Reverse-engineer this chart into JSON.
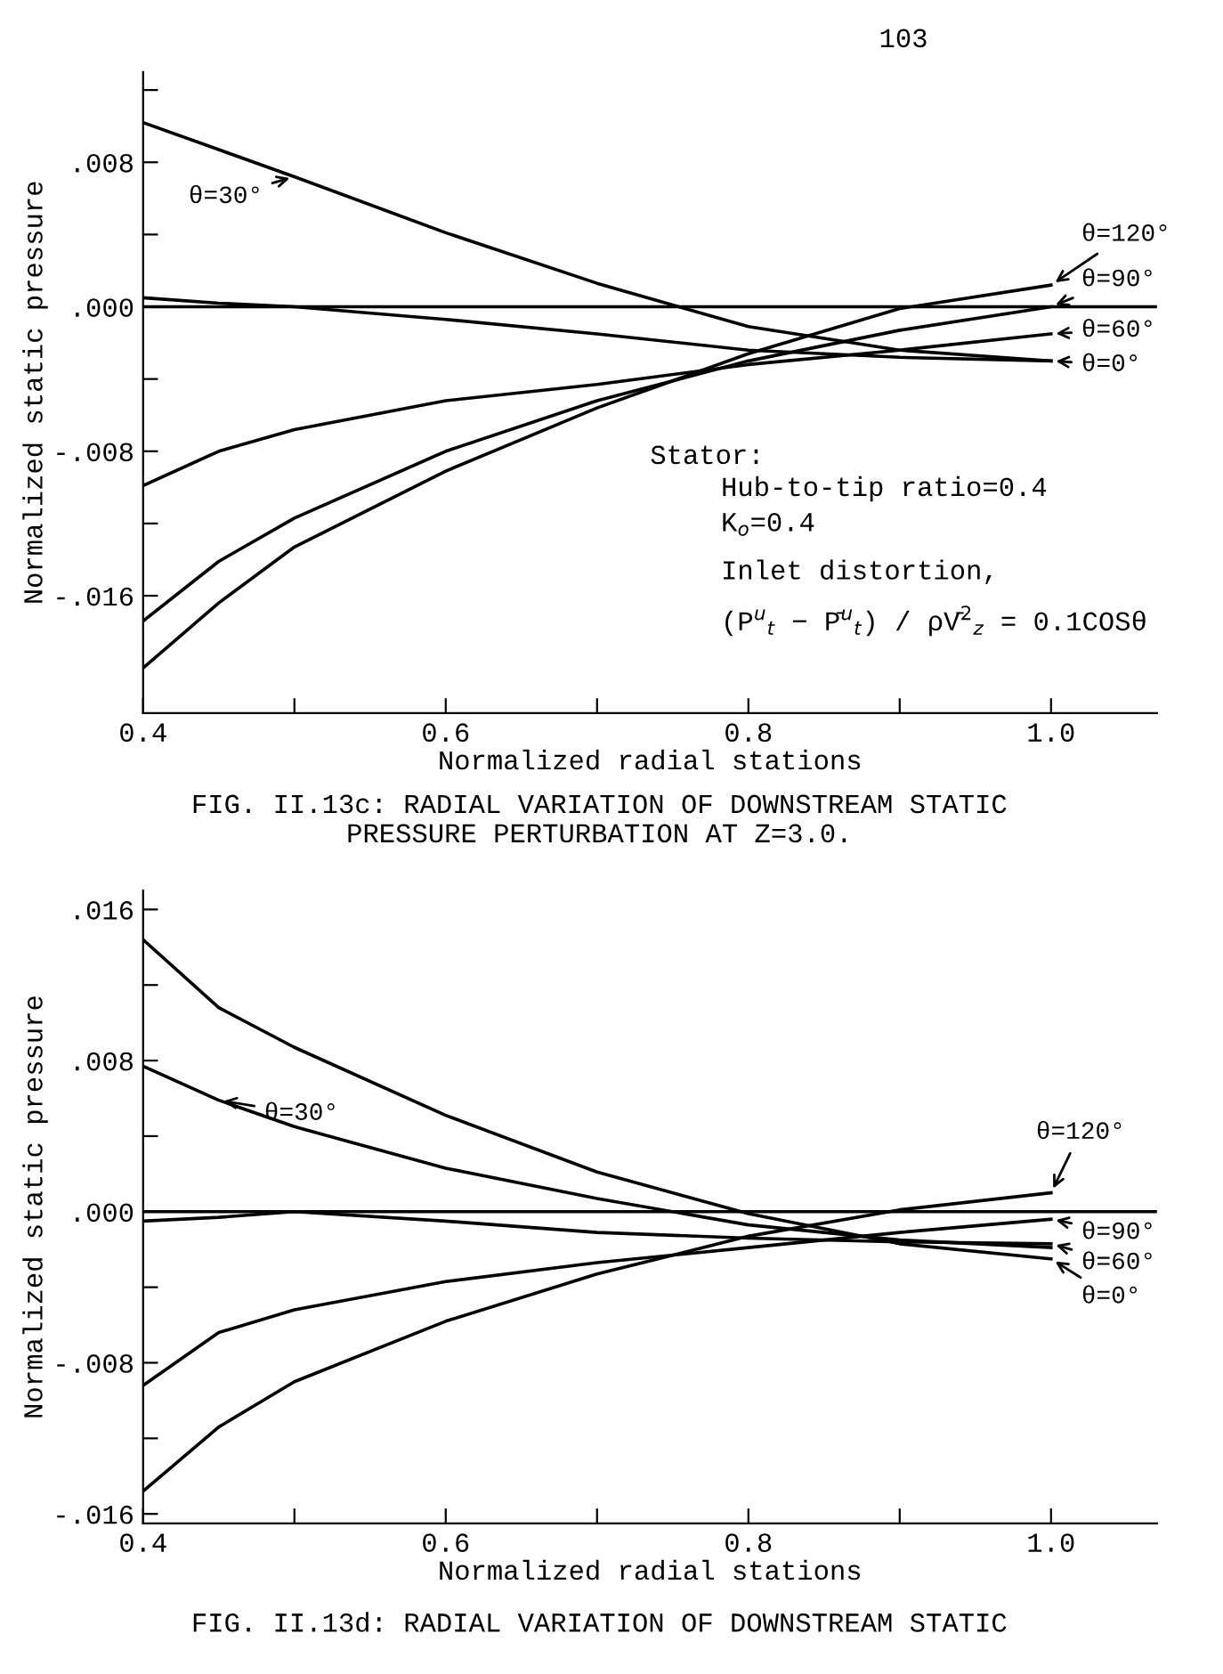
{
  "chart_data": [
    {
      "type": "line",
      "xlabel": "Normalized radial stations",
      "ylabel": "Normalized static pressure",
      "annotations": [
        "103",
        "Stator:",
        "Hub-to-tip ratio=0.4",
        "K$_{o}$=0.4",
        "Inlet distortion,",
        "(P$^{u}$$_{t}$ − P̄$^{u}$$_{t}$) / ρV̄$^{2}$$_{z}$ = 0.1COSθ",
        "FIG. II.13c: RADIAL VARIATION OF DOWNSTREAM STATIC\nPRESSURE PERTURBATION AT Z=3.0."
      ],
      "x": [
        0.4,
        0.45,
        0.5,
        0.6,
        0.7,
        0.8,
        0.9,
        1.0
      ],
      "series": [
        {
          "name": "θ=30°",
          "color": "#000000",
          "values": [
            0.0102,
            0.0087,
            0.0072,
            0.0041,
            0.0013,
            -0.0011,
            -0.0024,
            -0.003
          ]
        },
        {
          "name": "θ=0°",
          "color": "#000000",
          "values": [
            0.0005,
            0.0002,
            0.0,
            -0.0007,
            -0.0015,
            -0.0024,
            -0.0028,
            -0.003
          ]
        },
        {
          "name": "θ=60°",
          "color": "#000000",
          "values": [
            -0.0099,
            -0.008,
            -0.0068,
            -0.0052,
            -0.0043,
            -0.0032,
            -0.0024,
            -0.0015
          ]
        },
        {
          "name": "θ=90°",
          "color": "#000000",
          "values": [
            -0.0174,
            -0.0141,
            -0.0117,
            -0.008,
            -0.0052,
            -0.003,
            -0.0013,
            0.0
          ]
        },
        {
          "name": "θ=120°",
          "color": "#000000",
          "values": [
            -0.02,
            -0.0164,
            -0.0133,
            -0.0091,
            -0.0056,
            -0.0026,
            -0.0001,
            0.0012
          ]
        }
      ],
      "xlim": [
        0.4,
        1.07
      ],
      "ylim": [
        -0.0225,
        0.013
      ],
      "xticks": [
        {
          "value": 0.4,
          "label": "0.4"
        },
        {
          "value": 0.5,
          "label": null
        },
        {
          "value": 0.6,
          "label": "0.6"
        },
        {
          "value": 0.7,
          "label": null
        },
        {
          "value": 0.8,
          "label": "0.8"
        },
        {
          "value": 0.9,
          "label": null
        },
        {
          "value": 1.0,
          "label": "1.0"
        }
      ],
      "yticks": [
        {
          "value": 0.012,
          "label": null
        },
        {
          "value": 0.008,
          "label": ".008"
        },
        {
          "value": 0.004,
          "label": null
        },
        {
          "value": 0,
          "label": ".000"
        },
        {
          "value": -0.004,
          "label": null
        },
        {
          "value": -0.008,
          "label": "-.008"
        },
        {
          "value": -0.012,
          "label": null
        },
        {
          "value": -0.016,
          "label": "-.016"
        }
      ],
      "ref_lines": [
        {
          "axis": "y",
          "value": 0,
          "color": "#000000"
        }
      ],
      "line_style": "solid",
      "marker": "none",
      "grid": false,
      "legend": "right"
    },
    {
      "type": "line",
      "xlabel": "Normalized radial stations",
      "ylabel": "Normalized static pressure",
      "annotations": [
        "FIG. II.13d: RADIAL VARIATION OF DOWNSTREAM STATIC"
      ],
      "x": [
        0.4,
        0.45,
        0.5,
        0.6,
        0.7,
        0.8,
        0.9,
        1.0
      ],
      "series": [
        {
          "name": "θ=0°",
          "color": "#000000",
          "values": [
            0.0144,
            0.0108,
            0.0087,
            0.0051,
            0.0021,
            -0.0001,
            -0.0017,
            -0.0025
          ]
        },
        {
          "name": "θ=30°",
          "color": "#000000",
          "values": [
            0.0077,
            0.0059,
            0.0045,
            0.0023,
            0.0007,
            -0.0007,
            -0.0015,
            -0.0019
          ]
        },
        {
          "name": "θ=60°",
          "color": "#000000",
          "values": [
            -0.0005,
            -0.0003,
            0.0,
            -0.0005,
            -0.0011,
            -0.0014,
            -0.0016,
            -0.0017
          ]
        },
        {
          "name": "θ=90°",
          "color": "#000000",
          "values": [
            -0.0092,
            -0.0064,
            -0.0052,
            -0.0037,
            -0.0027,
            -0.0019,
            -0.0011,
            -0.0004
          ]
        },
        {
          "name": "θ=120°",
          "color": "#000000",
          "values": [
            -0.0148,
            -0.0114,
            -0.009,
            -0.0058,
            -0.0033,
            -0.0013,
            0.0001,
            0.001
          ]
        }
      ],
      "xlim": [
        0.4,
        1.07
      ],
      "ylim": [
        -0.0165,
        0.017
      ],
      "xticks": [
        {
          "value": 0.4,
          "label": "0.4"
        },
        {
          "value": 0.5,
          "label": null
        },
        {
          "value": 0.6,
          "label": "0.6"
        },
        {
          "value": 0.7,
          "label": null
        },
        {
          "value": 0.8,
          "label": "0.8"
        },
        {
          "value": 0.9,
          "label": null
        },
        {
          "value": 1.0,
          "label": "1.0"
        }
      ],
      "yticks": [
        {
          "value": 0.016,
          "label": ".016"
        },
        {
          "value": 0.012,
          "label": null
        },
        {
          "value": 0.008,
          "label": ".008"
        },
        {
          "value": 0.004,
          "label": null
        },
        {
          "value": 0,
          "label": ".000"
        },
        {
          "value": -0.004,
          "label": null
        },
        {
          "value": -0.008,
          "label": "-.008"
        },
        {
          "value": -0.012,
          "label": null
        },
        {
          "value": -0.016,
          "label": "-.016"
        }
      ],
      "ref_lines": [
        {
          "axis": "y",
          "value": 0,
          "color": "#000000"
        }
      ],
      "line_style": "solid",
      "marker": "none",
      "grid": false,
      "legend": "right"
    }
  ]
}
